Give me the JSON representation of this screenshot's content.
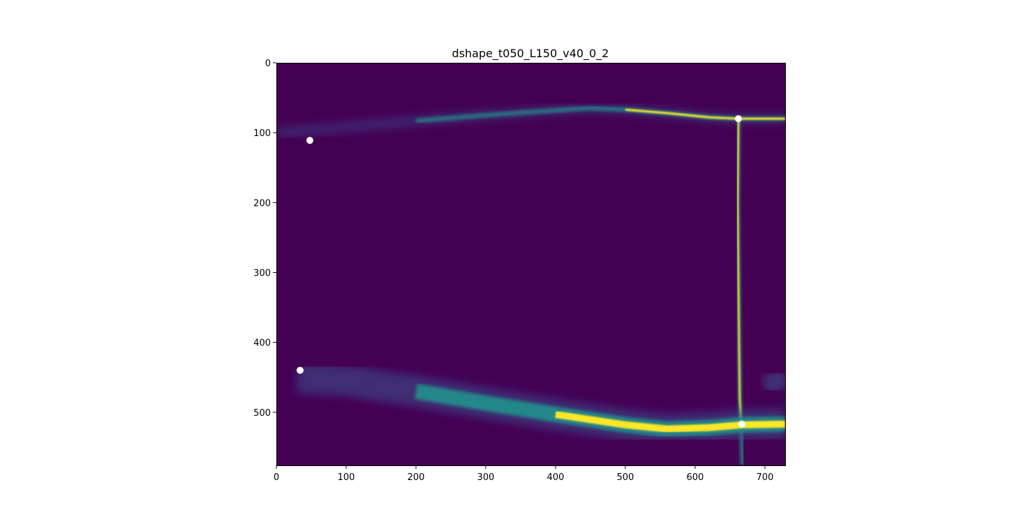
{
  "chart_data": {
    "type": "heatmap",
    "title": "dshape_t050_L150_v40_0_2",
    "xlabel": "",
    "ylabel": "",
    "xlim": [
      0,
      729
    ],
    "ylim": [
      576,
      0
    ],
    "y_inverted": true,
    "colormap": "viridis",
    "colors": {
      "background": "#440154",
      "low": "#3b528b",
      "mid": "#21918c",
      "high": "#fde725"
    },
    "xticks": [
      0,
      100,
      200,
      300,
      400,
      500,
      600,
      700
    ],
    "yticks": [
      0,
      100,
      200,
      300,
      400,
      500
    ],
    "grid": false,
    "points": [
      {
        "x": 48,
        "y": 111
      },
      {
        "x": 34,
        "y": 440
      },
      {
        "x": 662,
        "y": 80
      },
      {
        "x": 667,
        "y": 517
      }
    ],
    "features": {
      "top_ridge": [
        [
          0,
          100
        ],
        [
          100,
          92
        ],
        [
          200,
          83
        ],
        [
          300,
          75
        ],
        [
          400,
          68
        ],
        [
          450,
          65
        ],
        [
          500,
          67
        ],
        [
          560,
          72
        ],
        [
          620,
          78
        ],
        [
          662,
          80
        ],
        [
          729,
          80
        ]
      ],
      "vertical_ridge": [
        [
          662,
          80
        ],
        [
          661,
          200
        ],
        [
          662,
          300
        ],
        [
          663,
          400
        ],
        [
          664,
          480
        ],
        [
          666,
          517
        ],
        [
          668,
          576
        ]
      ],
      "bottom_band": [
        [
          30,
          450
        ],
        [
          100,
          455
        ],
        [
          200,
          470
        ],
        [
          300,
          487
        ],
        [
          400,
          503
        ],
        [
          500,
          518
        ],
        [
          560,
          524
        ],
        [
          620,
          522
        ],
        [
          667,
          518
        ],
        [
          729,
          517
        ]
      ],
      "right_patch": [
        [
          700,
          465
        ],
        [
          729,
          448
        ]
      ]
    }
  }
}
